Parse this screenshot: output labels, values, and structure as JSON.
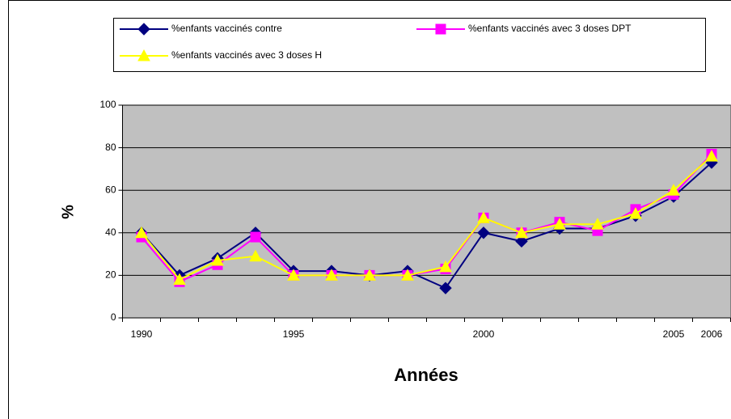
{
  "chart_data": {
    "type": "line",
    "xlabel": "Années",
    "ylabel": "%",
    "categories": [
      "1990",
      null,
      null,
      null,
      "1995",
      null,
      null,
      null,
      null,
      "2000",
      null,
      null,
      null,
      null,
      "2005",
      "2006"
    ],
    "series": [
      {
        "name": "%enfants vaccinés contre",
        "color": "#000080",
        "marker": "diamond",
        "values": [
          40,
          20,
          28,
          40,
          22,
          22,
          20,
          22,
          14,
          40,
          36,
          42,
          42,
          48,
          57,
          73
        ]
      },
      {
        "name": "%enfants vaccinés avec 3 doses DPT",
        "color": "#ff00ff",
        "marker": "square",
        "values": [
          38,
          17,
          25,
          38,
          20,
          20,
          20,
          20,
          23,
          47,
          40,
          45,
          41,
          51,
          58,
          77
        ]
      },
      {
        "name": "%enfants vaccinés avec 3 doses H",
        "color": "#ffff00",
        "marker": "triangle",
        "values": [
          40,
          18,
          27,
          29,
          20,
          20,
          20,
          20,
          24,
          47,
          40,
          44,
          44,
          49,
          60,
          76
        ]
      }
    ],
    "ylim": [
      0,
      100
    ],
    "yticks": [
      0,
      20,
      40,
      60,
      80,
      100
    ],
    "grid": true,
    "legend": "top"
  }
}
